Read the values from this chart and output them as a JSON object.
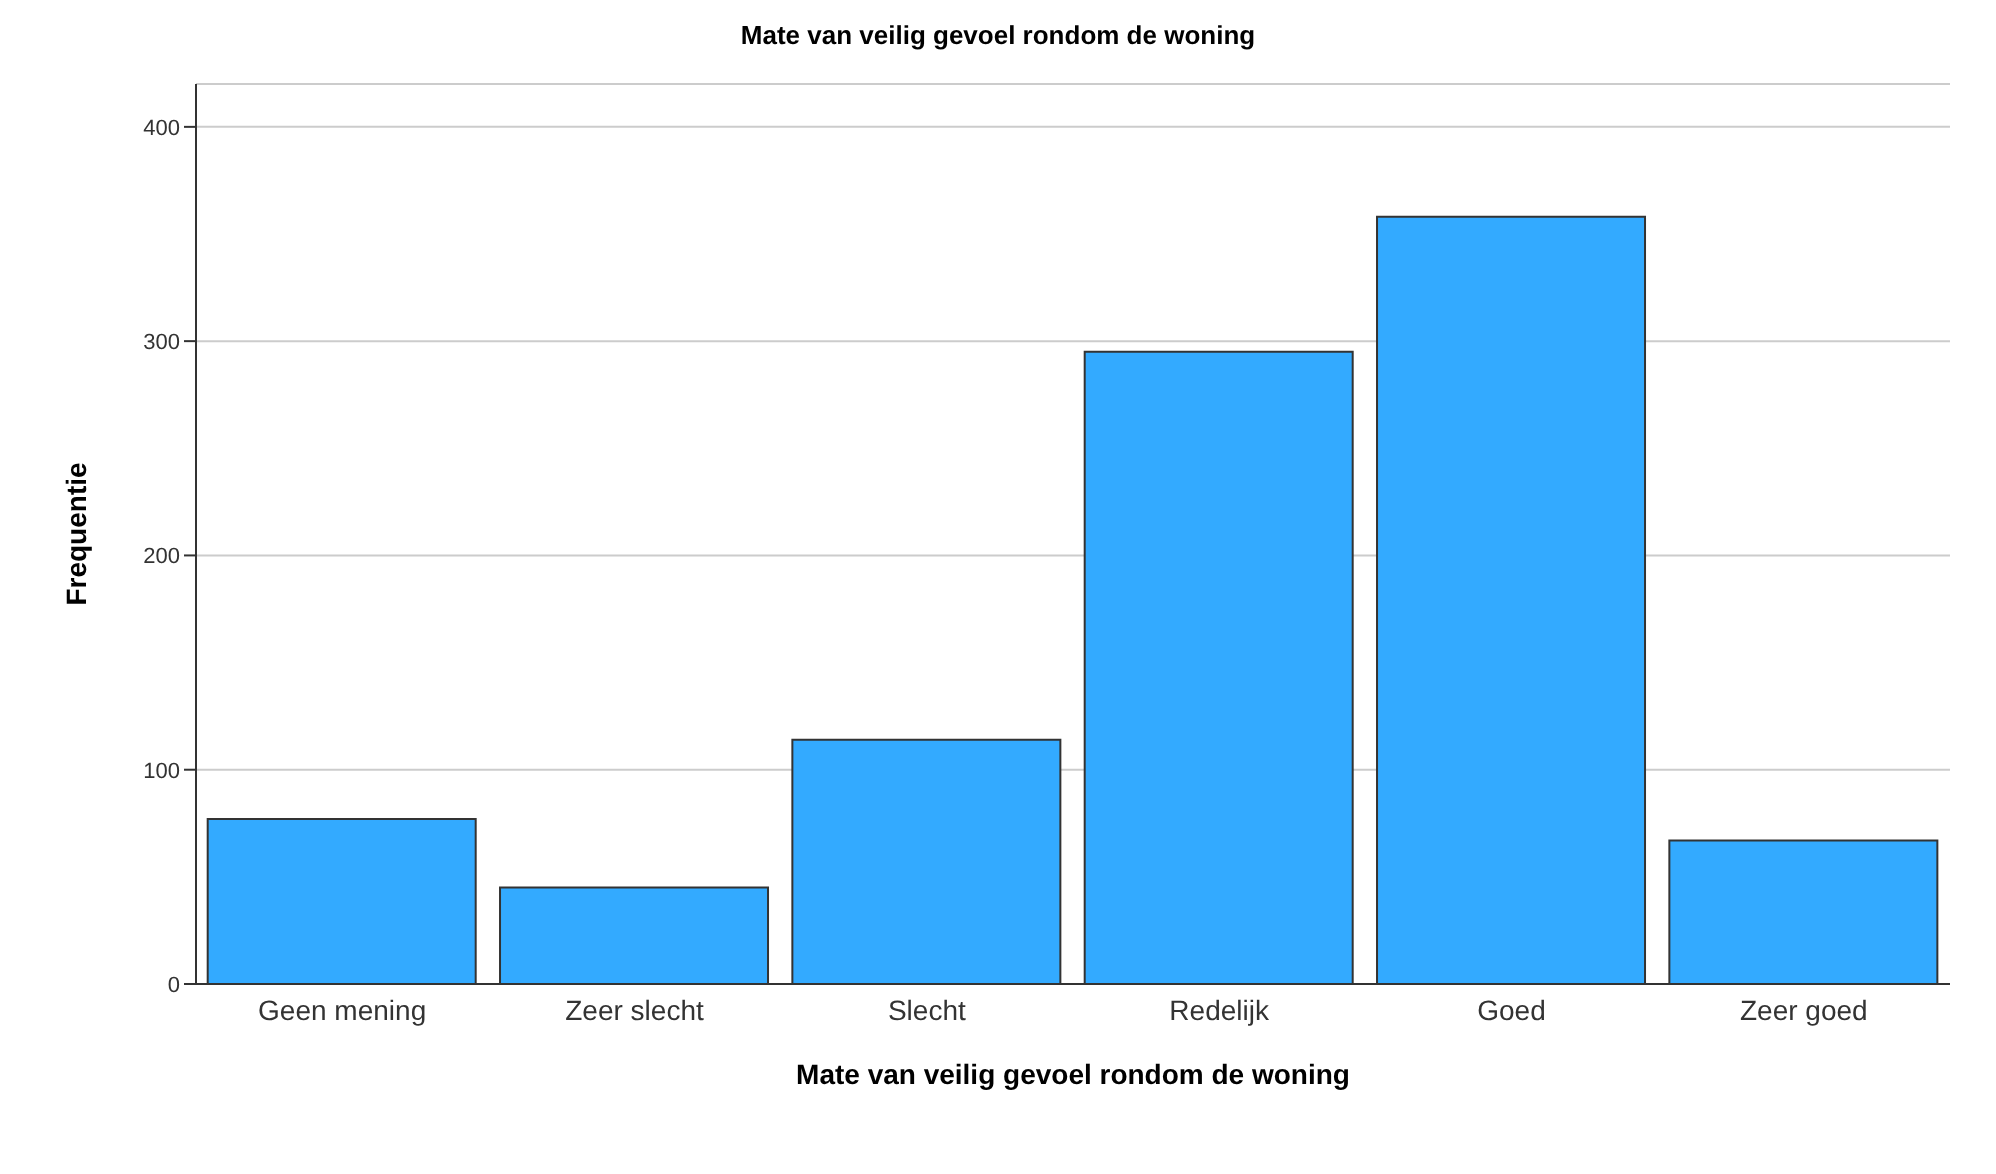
{
  "chart_data": {
    "type": "bar",
    "title": "Mate van veilig gevoel rondom de woning",
    "xlabel": "Mate van veilig gevoel rondom de woning",
    "ylabel": "Frequentie",
    "categories": [
      "Geen mening",
      "Zeer slecht",
      "Slecht",
      "Redelijk",
      "Goed",
      "Zeer goed"
    ],
    "values": [
      77,
      45,
      114,
      295,
      358,
      67
    ],
    "color": "#33aaff",
    "ylim": [
      0,
      420
    ],
    "yticks": [
      0,
      100,
      200,
      300,
      400
    ],
    "grid": "y"
  }
}
